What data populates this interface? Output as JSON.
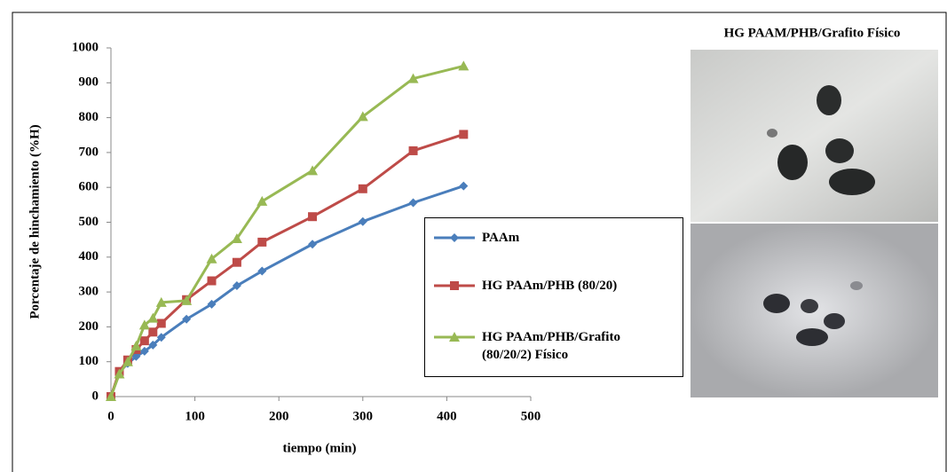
{
  "chart_data": {
    "type": "line",
    "y_label": "Porcentaje de hinchamiento  (%H)",
    "x_label": "tiempo  (min)",
    "photo_title": "HG PAAM/PHB/Grafito  Físico",
    "x": [
      0,
      10,
      20,
      30,
      40,
      50,
      60,
      90,
      120,
      150,
      180,
      240,
      300,
      360,
      420
    ],
    "series": [
      {
        "name": "PAAm",
        "color": "#4a7ebb",
        "marker": "diamond",
        "values": [
          0,
          70,
          95,
          115,
          130,
          148,
          170,
          222,
          265,
          318,
          360,
          437,
          502,
          556,
          604
        ]
      },
      {
        "name": "HG PAAm/PHB (80/20)",
        "color": "#be4b48",
        "marker": "square",
        "values": [
          0,
          72,
          105,
          135,
          160,
          185,
          210,
          278,
          332,
          385,
          443,
          516,
          596,
          705,
          752
        ]
      },
      {
        "name": "HG PAAm/PHB/Grafito (80/20/2) Físico",
        "color": "#98b954",
        "marker": "triangle",
        "values": [
          0,
          65,
          100,
          145,
          205,
          225,
          270,
          275,
          395,
          453,
          560,
          648,
          803,
          912,
          948
        ]
      }
    ],
    "xlim": [
      0,
      500
    ],
    "xticks": [
      0,
      100,
      200,
      300,
      400,
      500
    ],
    "ylim": [
      0,
      1000
    ],
    "yticks": [
      0,
      100,
      200,
      300,
      400,
      500,
      600,
      700,
      800,
      900,
      1000
    ],
    "grid": false
  }
}
